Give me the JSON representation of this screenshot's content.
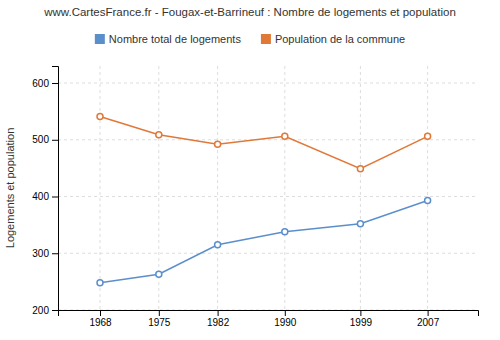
{
  "chart_data": {
    "type": "line",
    "title": "www.CartesFrance.fr - Fougax-et-Barrineuf : Nombre de logements et population",
    "y_label": "Logements et population",
    "x": [
      1968,
      1975,
      1982,
      1990,
      1999,
      2007
    ],
    "xlim": [
      1963,
      2013
    ],
    "xticks": [
      1968,
      1975,
      1982,
      1990,
      1999,
      2007
    ],
    "ylim": [
      200,
      630
    ],
    "yticks": [
      200,
      300,
      400,
      500,
      600
    ],
    "grid": true,
    "legend": "top",
    "series": [
      {
        "name": "Nombre total de logements",
        "color": "#5b8fcc",
        "marker": "circle",
        "values": [
          248,
          263,
          315,
          338,
          352,
          393
        ]
      },
      {
        "name": "Population de la commune",
        "color": "#e07838",
        "marker": "circle",
        "values": [
          541,
          509,
          492,
          506,
          449,
          506
        ]
      }
    ]
  }
}
